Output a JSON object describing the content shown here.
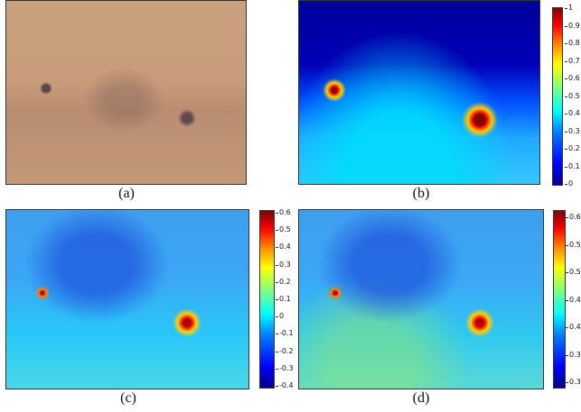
{
  "panels": [
    {
      "caption": "(a)",
      "kind": "photo",
      "colorbar": null
    },
    {
      "caption": "(b)",
      "kind": "heatmap",
      "colorbar": {
        "ticks": [
          "1",
          "0.9",
          "0.8",
          "0.7",
          "0.6",
          "0.5",
          "0.4",
          "0.3",
          "0.2",
          "0.1",
          "0"
        ]
      }
    },
    {
      "caption": "(c)",
      "kind": "heatmap",
      "colorbar": {
        "ticks": [
          "0.6",
          "0.5",
          "0.4",
          "0.3",
          "0.2",
          "0.1",
          "0",
          "-0.1",
          "-0.2",
          "-0.3",
          "-0.4"
        ]
      }
    },
    {
      "caption": "(d)",
      "kind": "heatmap",
      "colorbar": {
        "ticks": [
          "0.6",
          "0.5",
          "0.5",
          "0.4",
          "0.4",
          "0.3",
          "0.3"
        ]
      }
    }
  ],
  "colors": {
    "colormap": "jet"
  }
}
